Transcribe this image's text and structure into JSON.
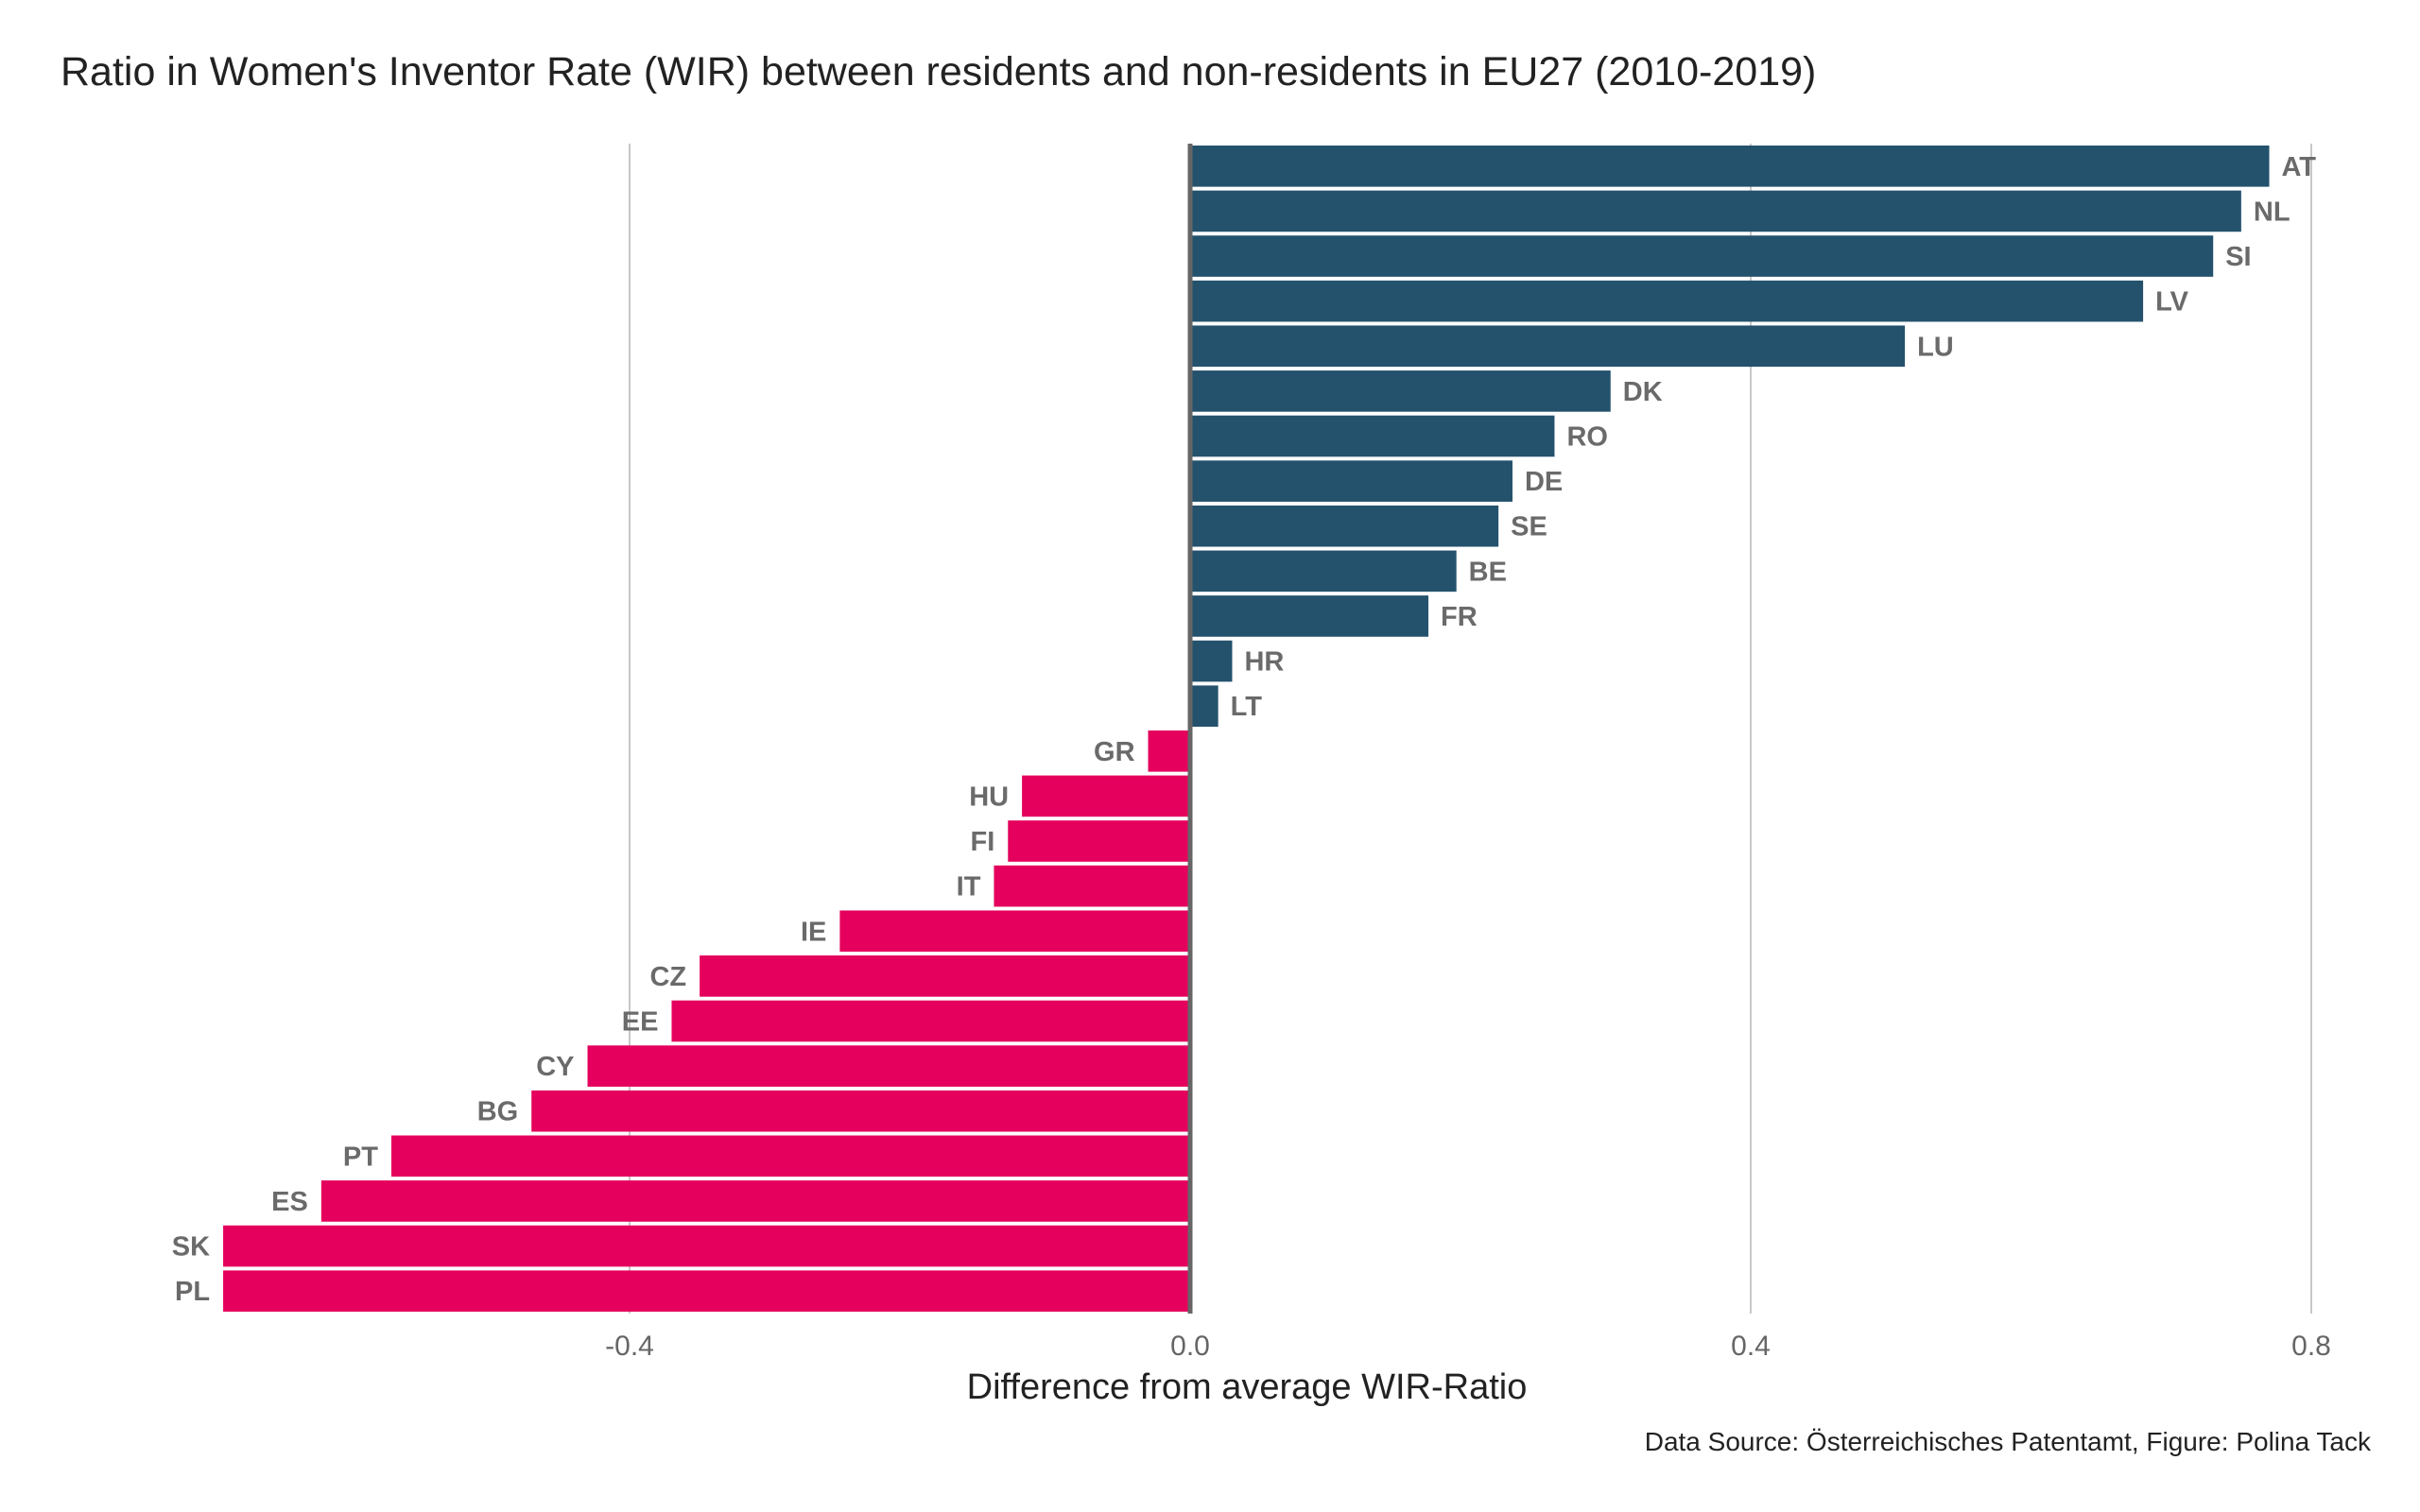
{
  "chart_data": {
    "type": "bar",
    "orientation": "horizontal",
    "title": "Ratio in Women's Inventor Rate (WIR) between residents and non-residents in EU27 (2010-2019)",
    "xlabel": "Difference from average WIR-Ratio",
    "ylabel": "",
    "caption": "Data Source: Österreichisches Patentamt, Figure: Polina Tack",
    "xlim": [
      -0.69,
      0.8
    ],
    "xticks": [
      {
        "value": -0.4,
        "label": "-0.4"
      },
      {
        "value": 0.0,
        "label": "0.0"
      },
      {
        "value": 0.4,
        "label": "0.4"
      },
      {
        "value": 0.8,
        "label": "0.8"
      }
    ],
    "grid": "vertical",
    "colors": {
      "positive": "#24526d",
      "negative": "#e4005c",
      "zero_line": "#666666",
      "grid": "#c8c8c8",
      "label": "#6a6a6a"
    },
    "categories": [
      "AT",
      "NL",
      "SI",
      "LV",
      "LU",
      "DK",
      "RO",
      "DE",
      "SE",
      "BE",
      "FR",
      "HR",
      "LT",
      "GR",
      "HU",
      "FI",
      "IT",
      "IE",
      "CZ",
      "EE",
      "CY",
      "BG",
      "PT",
      "ES",
      "SK",
      "PL"
    ],
    "values": [
      0.77,
      0.75,
      0.73,
      0.68,
      0.51,
      0.3,
      0.26,
      0.23,
      0.22,
      0.19,
      0.17,
      0.03,
      0.02,
      -0.03,
      -0.12,
      -0.13,
      -0.14,
      -0.25,
      -0.35,
      -0.37,
      -0.43,
      -0.47,
      -0.57,
      -0.62,
      -0.69,
      -0.69
    ]
  }
}
